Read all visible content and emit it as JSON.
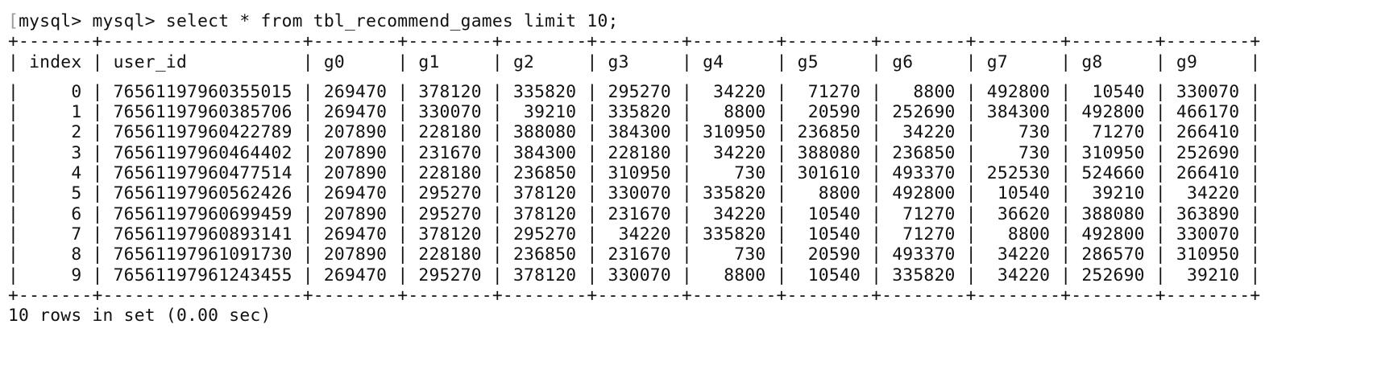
{
  "terminal": {
    "prompt": "mysql> mysql> select * from tbl_recommend_games limit 10;",
    "footer": "10 rows in set (0.00 sec)"
  },
  "table": {
    "columns": [
      "index",
      "user_id",
      "g0",
      "g1",
      "g2",
      "g3",
      "g4",
      "g5",
      "g6",
      "g7",
      "g8",
      "g9"
    ],
    "rows": [
      [
        "0",
        "76561197960355015",
        "269470",
        "378120",
        "335820",
        "295270",
        "34220",
        "71270",
        "8800",
        "492800",
        "10540",
        "330070"
      ],
      [
        "1",
        "76561197960385706",
        "269470",
        "330070",
        "39210",
        "335820",
        "8800",
        "20590",
        "252690",
        "384300",
        "492800",
        "466170"
      ],
      [
        "2",
        "76561197960422789",
        "207890",
        "228180",
        "388080",
        "384300",
        "310950",
        "236850",
        "34220",
        "730",
        "71270",
        "266410"
      ],
      [
        "3",
        "76561197960464402",
        "207890",
        "231670",
        "384300",
        "228180",
        "34220",
        "388080",
        "236850",
        "730",
        "310950",
        "252690"
      ],
      [
        "4",
        "76561197960477514",
        "207890",
        "228180",
        "236850",
        "310950",
        "730",
        "301610",
        "493370",
        "252530",
        "524660",
        "266410"
      ],
      [
        "5",
        "76561197960562426",
        "269470",
        "295270",
        "378120",
        "330070",
        "335820",
        "8800",
        "492800",
        "10540",
        "39210",
        "34220"
      ],
      [
        "6",
        "76561197960699459",
        "207890",
        "295270",
        "378120",
        "231670",
        "34220",
        "10540",
        "71270",
        "36620",
        "388080",
        "363890"
      ],
      [
        "7",
        "76561197960893141",
        "269470",
        "378120",
        "295270",
        "34220",
        "335820",
        "10540",
        "71270",
        "8800",
        "492800",
        "330070"
      ],
      [
        "8",
        "76561197961091730",
        "207890",
        "228180",
        "236850",
        "231670",
        "730",
        "20590",
        "493370",
        "34220",
        "286570",
        "310950"
      ],
      [
        "9",
        "76561197961243455",
        "269470",
        "295270",
        "378120",
        "330070",
        "8800",
        "10540",
        "335820",
        "34220",
        "252690",
        "39210"
      ]
    ]
  }
}
